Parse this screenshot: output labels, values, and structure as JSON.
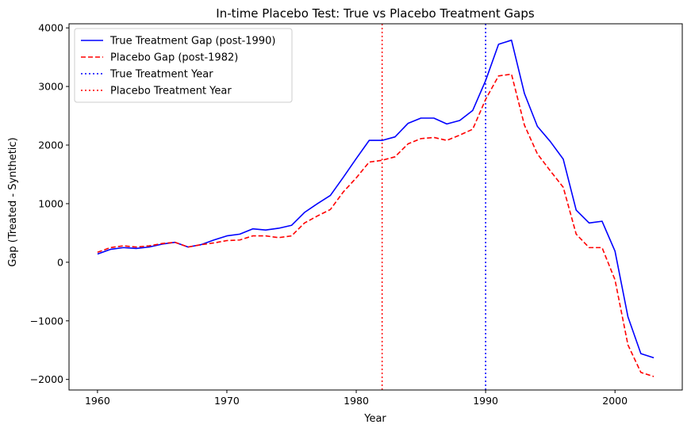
{
  "chart_data": {
    "type": "line",
    "title": "In-time Placebo Test: True vs Placebo Treatment Gaps",
    "xlabel": "Year",
    "ylabel": "Gap (Treated - Synthetic)",
    "xlim": [
      1957.8,
      2005.2
    ],
    "ylim": [
      -2180,
      4070
    ],
    "xticks": [
      1960,
      1970,
      1980,
      1990,
      2000
    ],
    "xtick_labels": [
      "1960",
      "1970",
      "1980",
      "1990",
      "2000"
    ],
    "yticks": [
      -2000,
      -1000,
      0,
      1000,
      2000,
      3000,
      4000
    ],
    "ytick_labels": [
      "−2000",
      "−1000",
      "0",
      "1000",
      "2000",
      "3000",
      "4000"
    ],
    "grid": false,
    "legend_position": "upper-left",
    "x": [
      1960,
      1961,
      1962,
      1963,
      1964,
      1965,
      1966,
      1967,
      1968,
      1969,
      1970,
      1971,
      1972,
      1973,
      1974,
      1975,
      1976,
      1977,
      1978,
      1979,
      1980,
      1981,
      1982,
      1983,
      1984,
      1985,
      1986,
      1987,
      1988,
      1989,
      1990,
      1991,
      1992,
      1993,
      1994,
      1995,
      1996,
      1997,
      1998,
      1999,
      2000,
      2001,
      2002,
      2003
    ],
    "series": [
      {
        "name": "True Treatment Gap (post-1990)",
        "color": "#0000ff",
        "style": "solid",
        "values": [
          140,
          220,
          250,
          235,
          260,
          310,
          340,
          260,
          300,
          380,
          450,
          480,
          570,
          550,
          580,
          630,
          850,
          1000,
          1140,
          1450,
          1770,
          2080,
          2080,
          2140,
          2370,
          2460,
          2460,
          2360,
          2420,
          2590,
          3100,
          3720,
          3790,
          2880,
          2320,
          2060,
          1760,
          890,
          670,
          700,
          190,
          -930,
          -1560,
          -1630
        ]
      },
      {
        "name": "Placebo Gap (post-1982)",
        "color": "#ff0000",
        "style": "dashed",
        "values": [
          170,
          250,
          280,
          260,
          280,
          320,
          340,
          260,
          300,
          330,
          370,
          380,
          450,
          450,
          420,
          450,
          670,
          790,
          900,
          1200,
          1440,
          1710,
          1740,
          1800,
          2020,
          2110,
          2130,
          2080,
          2170,
          2270,
          2780,
          3180,
          3210,
          2340,
          1850,
          1560,
          1280,
          480,
          250,
          250,
          -300,
          -1410,
          -1880,
          -1950
        ]
      }
    ],
    "vlines": [
      {
        "name": "True Treatment Year",
        "x": 1990,
        "color": "#0000ff",
        "style": "dotted"
      },
      {
        "name": "Placebo Treatment Year",
        "x": 1982,
        "color": "#ff0000",
        "style": "dotted"
      }
    ]
  }
}
